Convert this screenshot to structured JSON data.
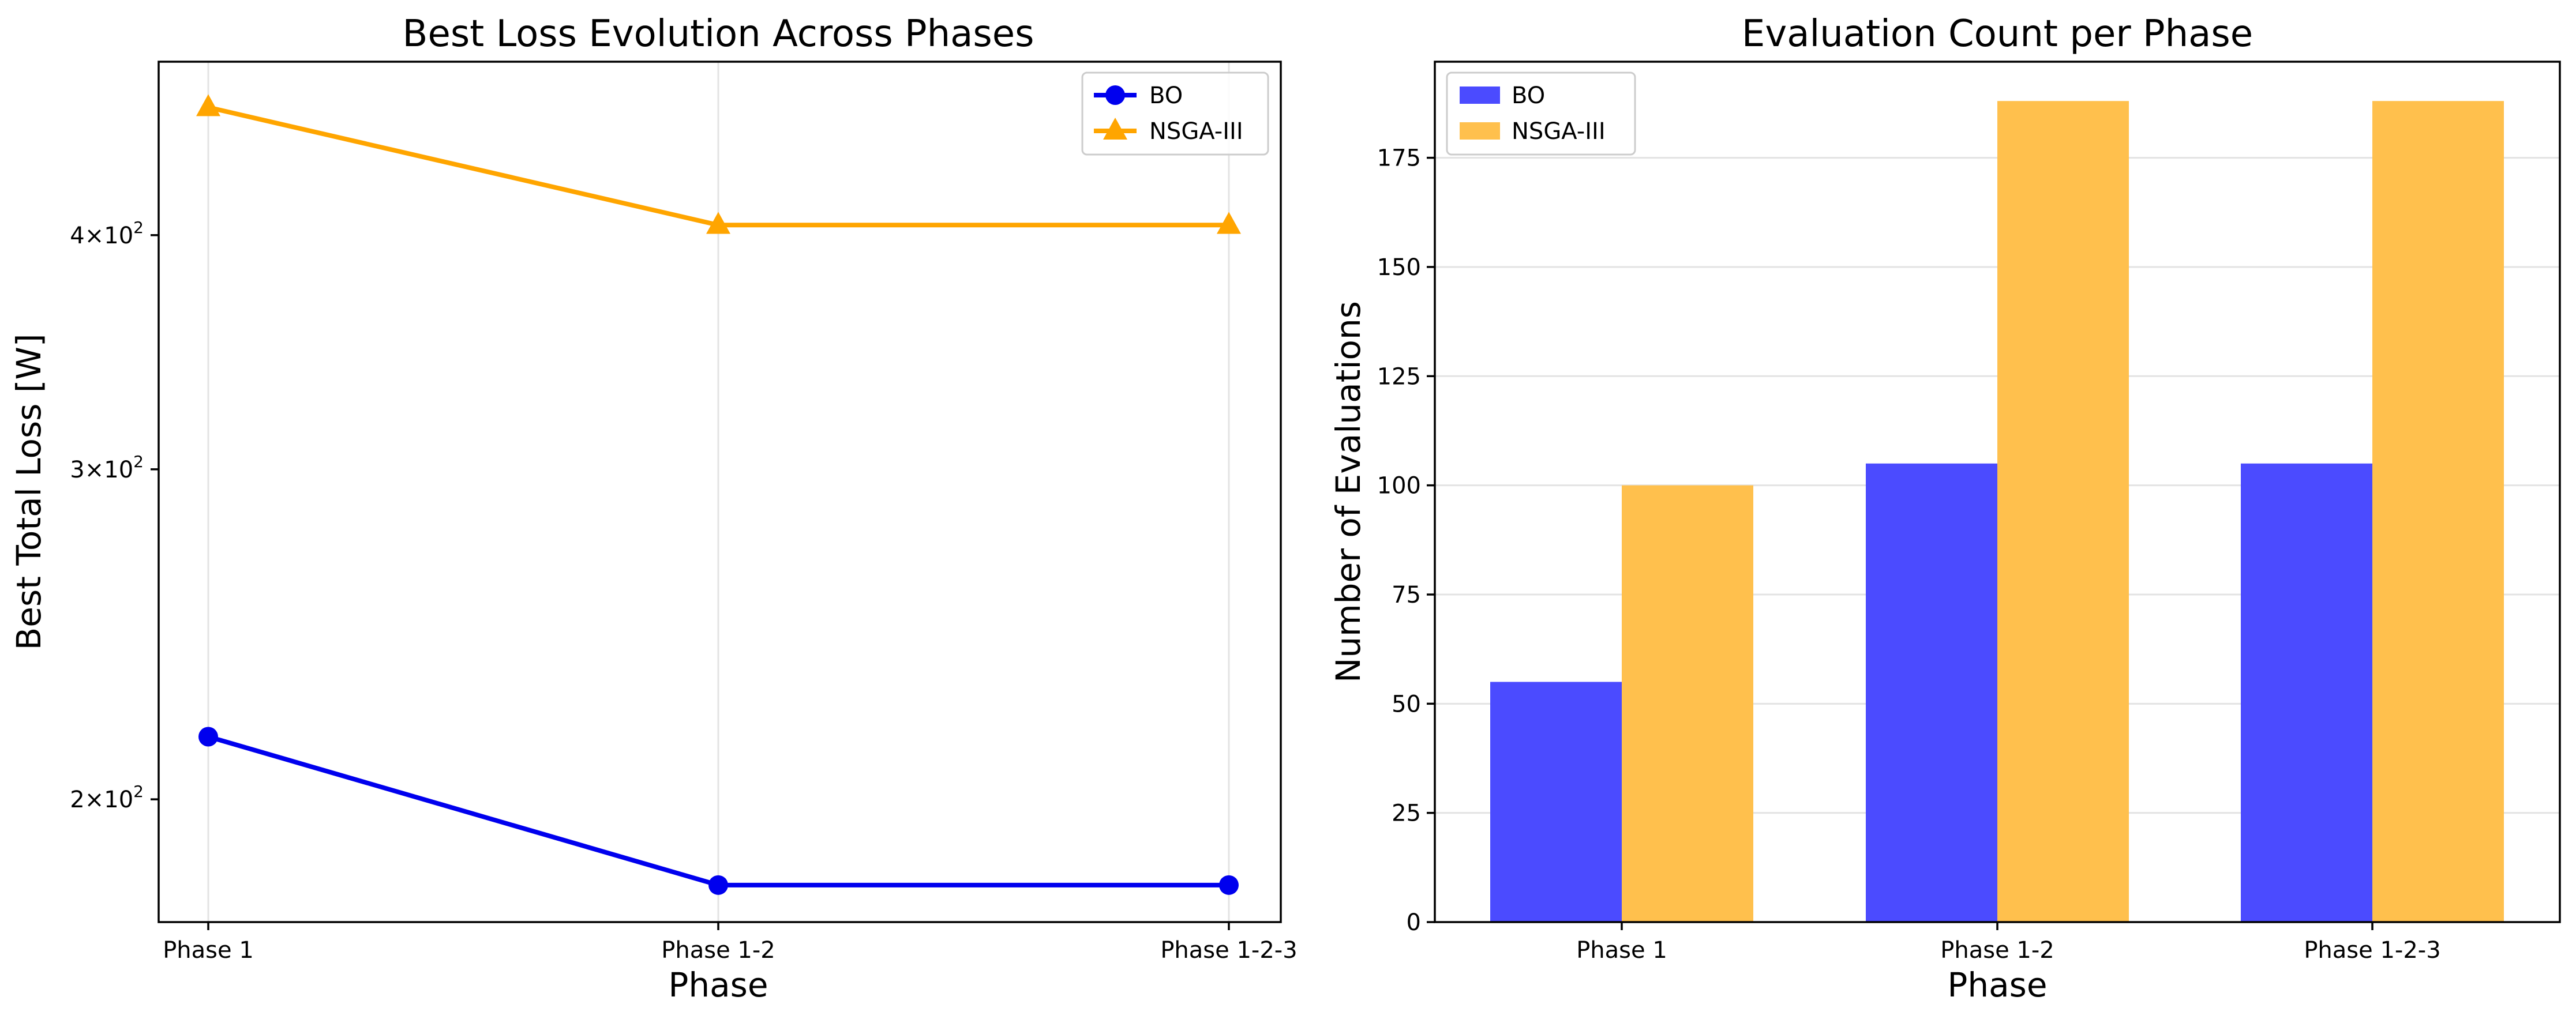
{
  "chart_data": [
    {
      "type": "line",
      "title": "Best Loss Evolution Across Phases",
      "xlabel": "Phase",
      "ylabel": "Best Total Loss [W]",
      "yscale": "log",
      "ylim": [
        172,
        495
      ],
      "categories": [
        "Phase 1",
        "Phase 1-2",
        "Phase 1-2-3"
      ],
      "yticks": [
        {
          "value": 200,
          "label": "2×10²",
          "base": "2×10",
          "exp": "2"
        },
        {
          "value": 300,
          "label": "3×10²",
          "base": "3×10",
          "exp": "2"
        },
        {
          "value": 400,
          "label": "4×10²",
          "base": "4×10",
          "exp": "2"
        }
      ],
      "grid": true,
      "legend": "top-right",
      "series": [
        {
          "name": "BO",
          "values": [
            216,
            180,
            180
          ],
          "color": "#0000ee",
          "marker": "circle"
        },
        {
          "name": "NSGA-III",
          "values": [
            468,
            405,
            405
          ],
          "color": "#ffa500",
          "marker": "triangle"
        }
      ]
    },
    {
      "type": "bar",
      "title": "Evaluation Count per Phase",
      "xlabel": "Phase",
      "ylabel": "Number of Evaluations",
      "ylim": [
        0,
        197
      ],
      "yticks": [
        0,
        25,
        50,
        75,
        100,
        125,
        150,
        175
      ],
      "categories": [
        "Phase 1",
        "Phase 1-2",
        "Phase 1-2-3"
      ],
      "grid": true,
      "legend": "top-left",
      "series": [
        {
          "name": "BO",
          "values": [
            55,
            105,
            105
          ],
          "color": "#4b4bff"
        },
        {
          "name": "NSGA-III",
          "values": [
            100,
            188,
            188
          ],
          "color": "#ffc04d"
        }
      ]
    }
  ]
}
